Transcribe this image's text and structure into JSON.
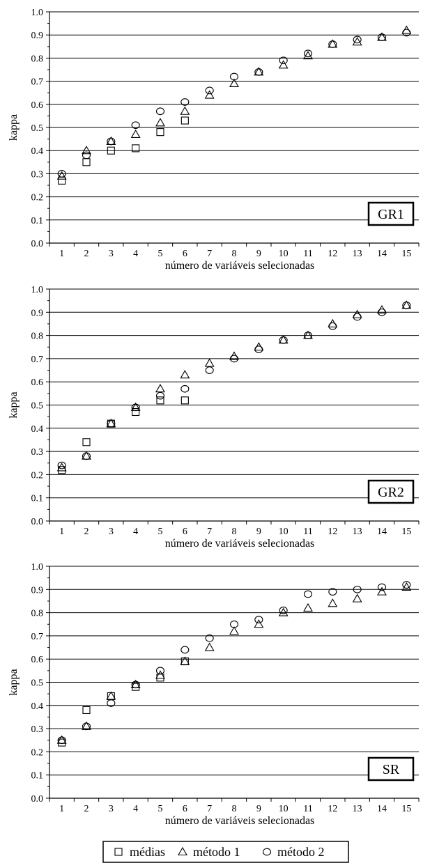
{
  "chart_data": [
    {
      "type": "scatter",
      "panel_label": "GR1",
      "xlabel": "número de variáveis selecionadas",
      "ylabel": "kappa",
      "xlim": [
        0.5,
        15.5
      ],
      "ylim": [
        0.0,
        1.0
      ],
      "x_ticks": [
        1,
        2,
        3,
        4,
        5,
        6,
        7,
        8,
        9,
        10,
        11,
        12,
        13,
        14,
        15
      ],
      "y_ticks": [
        0.0,
        0.1,
        0.2,
        0.3,
        0.4,
        0.5,
        0.6,
        0.7,
        0.8,
        0.9,
        1.0
      ],
      "y_tick_labels": [
        "0.0",
        "0.1",
        "0.2",
        "0.3",
        "0.4",
        "0.5",
        "0.6",
        "0.7",
        "0.8",
        "0.9",
        "1.0"
      ],
      "grid": "horizontal",
      "series": [
        {
          "name": "médias",
          "marker": "square",
          "x": [
            1,
            2,
            3,
            4,
            5,
            6
          ],
          "values": [
            0.27,
            0.35,
            0.4,
            0.41,
            0.48,
            0.53
          ]
        },
        {
          "name": "método 1",
          "marker": "triangle",
          "x": [
            1,
            2,
            3,
            4,
            5,
            6,
            7,
            8,
            9,
            10,
            11,
            12,
            13,
            14,
            15
          ],
          "values": [
            0.29,
            0.4,
            0.44,
            0.47,
            0.52,
            0.57,
            0.64,
            0.69,
            0.74,
            0.77,
            0.81,
            0.86,
            0.87,
            0.89,
            0.92
          ]
        },
        {
          "name": "método 2",
          "marker": "circle",
          "x": [
            1,
            2,
            3,
            4,
            5,
            6,
            7,
            8,
            9,
            10,
            11,
            12,
            13,
            14,
            15
          ],
          "values": [
            0.3,
            0.38,
            0.44,
            0.51,
            0.57,
            0.61,
            0.66,
            0.72,
            0.74,
            0.79,
            0.82,
            0.86,
            0.88,
            0.89,
            0.91
          ]
        }
      ]
    },
    {
      "type": "scatter",
      "panel_label": "GR2",
      "xlabel": "número de variáveis selecionadas",
      "ylabel": "kappa",
      "xlim": [
        0.5,
        15.5
      ],
      "ylim": [
        0.0,
        1.0
      ],
      "x_ticks": [
        1,
        2,
        3,
        4,
        5,
        6,
        7,
        8,
        9,
        10,
        11,
        12,
        13,
        14,
        15
      ],
      "y_ticks": [
        0.0,
        0.1,
        0.2,
        0.3,
        0.4,
        0.5,
        0.6,
        0.7,
        0.8,
        0.9,
        1.0
      ],
      "y_tick_labels": [
        "0.0",
        "0.1",
        "0.2",
        "0.3",
        "0.4",
        "0.5",
        "0.6",
        "0.7",
        "0.8",
        "0.9",
        "1.0"
      ],
      "grid": "horizontal",
      "series": [
        {
          "name": "médias",
          "marker": "square",
          "x": [
            1,
            2,
            3,
            4,
            5,
            6
          ],
          "values": [
            0.22,
            0.34,
            0.42,
            0.47,
            0.52,
            0.52
          ]
        },
        {
          "name": "método 1",
          "marker": "triangle",
          "x": [
            1,
            2,
            3,
            4,
            5,
            6,
            7,
            8,
            9,
            10,
            11,
            12,
            13,
            14,
            15
          ],
          "values": [
            0.23,
            0.28,
            0.42,
            0.49,
            0.57,
            0.63,
            0.68,
            0.71,
            0.75,
            0.78,
            0.8,
            0.85,
            0.89,
            0.91,
            0.93
          ]
        },
        {
          "name": "método 2",
          "marker": "circle",
          "x": [
            1,
            2,
            3,
            4,
            5,
            6,
            7,
            8,
            9,
            10,
            11,
            12,
            13,
            14,
            15
          ],
          "values": [
            0.24,
            0.28,
            0.42,
            0.49,
            0.54,
            0.57,
            0.65,
            0.7,
            0.74,
            0.78,
            0.8,
            0.84,
            0.88,
            0.9,
            0.93
          ]
        }
      ]
    },
    {
      "type": "scatter",
      "panel_label": "SR",
      "xlabel": "número de variáveis selecionadas",
      "ylabel": "kappa",
      "xlim": [
        0.5,
        15.5
      ],
      "ylim": [
        0.0,
        1.0
      ],
      "x_ticks": [
        1,
        2,
        3,
        4,
        5,
        6,
        7,
        8,
        9,
        10,
        11,
        12,
        13,
        14,
        15
      ],
      "y_ticks": [
        0.0,
        0.1,
        0.2,
        0.3,
        0.4,
        0.5,
        0.6,
        0.7,
        0.8,
        0.9,
        1.0
      ],
      "y_tick_labels": [
        "0.0",
        "0.1",
        "0.2",
        "0.3",
        "0.4",
        "0.5",
        "0.6",
        "0.7",
        "0.8",
        "0.9",
        "1.0"
      ],
      "grid": "horizontal",
      "series": [
        {
          "name": "médias",
          "marker": "square",
          "x": [
            1,
            2,
            3,
            4,
            5,
            6
          ],
          "values": [
            0.24,
            0.38,
            0.44,
            0.48,
            0.52,
            0.59
          ]
        },
        {
          "name": "método 1",
          "marker": "triangle",
          "x": [
            1,
            2,
            3,
            4,
            5,
            6,
            7,
            8,
            9,
            10,
            11,
            12,
            13,
            14,
            15
          ],
          "values": [
            0.25,
            0.31,
            0.44,
            0.49,
            0.53,
            0.59,
            0.65,
            0.72,
            0.75,
            0.8,
            0.82,
            0.84,
            0.86,
            0.89,
            0.91
          ]
        },
        {
          "name": "método 2",
          "marker": "circle",
          "x": [
            1,
            2,
            3,
            4,
            5,
            6,
            7,
            8,
            9,
            10,
            11,
            12,
            13,
            14,
            15
          ],
          "values": [
            0.25,
            0.31,
            0.41,
            0.49,
            0.55,
            0.64,
            0.69,
            0.75,
            0.77,
            0.81,
            0.88,
            0.89,
            0.9,
            0.91,
            0.92
          ]
        }
      ]
    }
  ],
  "legend": {
    "placement": "bottom",
    "items": [
      {
        "marker": "square",
        "label": "médias"
      },
      {
        "marker": "triangle",
        "label": "método 1"
      },
      {
        "marker": "circle",
        "label": "método 2"
      }
    ]
  }
}
